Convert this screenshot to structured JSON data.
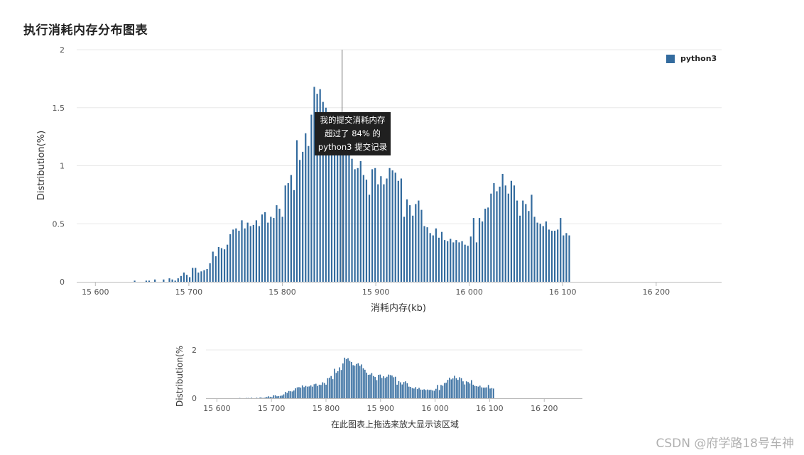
{
  "title": "执行消耗内存分布图表",
  "colors": {
    "bar": "#336b9e",
    "grid": "#e8e8e8",
    "axis": "#bbbbbb",
    "tick": "#555555",
    "tooltip_bg": "#202020",
    "watermark": "#b0b0b0"
  },
  "tooltip": {
    "lines": [
      "我的提交消耗内存",
      "超过了 84% 的",
      "python3 提交记录"
    ]
  },
  "legend": {
    "label": "python3"
  },
  "nav": {
    "hint": "在此图表上拖选来放大显示该区域"
  },
  "watermark": "CSDN @府学路18号车神",
  "chart_data": [
    {
      "type": "bar",
      "xlabel": "消耗内存(kb)",
      "ylabel": "Distribution(%)",
      "x_ticks": [
        15600,
        15700,
        15800,
        15900,
        16000,
        16100,
        16200
      ],
      "x_tick_labels": [
        "15 600",
        "15 700",
        "15 800",
        "15 900",
        "16 000",
        "16 100",
        "16 200"
      ],
      "y_ticks": [
        0,
        0.5,
        1,
        1.5,
        2
      ],
      "y_tick_labels": [
        "0",
        "0.5",
        "1",
        "1.5",
        "2"
      ],
      "xlim": [
        15580,
        16270
      ],
      "ylim": [
        0,
        2
      ],
      "highlight_x": 15864,
      "legend_position": "top-right",
      "grid": true,
      "x_start": 15642,
      "x_step": 3.1,
      "series": [
        {
          "name": "python3",
          "values": [
            0.01,
            0,
            0,
            0,
            0.01,
            0.01,
            0,
            0.02,
            0,
            0,
            0.02,
            0,
            0.03,
            0.02,
            0.01,
            0.03,
            0.05,
            0.08,
            0.06,
            0.04,
            0.12,
            0.12,
            0.08,
            0.09,
            0.1,
            0.11,
            0.16,
            0.26,
            0.22,
            0.3,
            0.29,
            0.28,
            0.32,
            0.41,
            0.45,
            0.46,
            0.44,
            0.53,
            0.46,
            0.51,
            0.48,
            0.49,
            0.53,
            0.48,
            0.58,
            0.6,
            0.51,
            0.56,
            0.55,
            0.66,
            0.63,
            0.56,
            0.83,
            0.85,
            0.92,
            0.79,
            1.22,
            1.05,
            1.12,
            1.28,
            1.17,
            1.44,
            1.68,
            1.62,
            1.66,
            1.55,
            1.5,
            1.37,
            1.35,
            1.42,
            1.45,
            1.34,
            1.4,
            1.24,
            1.18,
            1.06,
            0.97,
            0.98,
            1.04,
            0.92,
            0.88,
            0.75,
            0.97,
            0.98,
            0.84,
            0.91,
            0.84,
            0.89,
            0.98,
            0.96,
            0.94,
            0.87,
            0.89,
            0.56,
            0.71,
            0.66,
            0.57,
            0.67,
            0.7,
            0.62,
            0.48,
            0.47,
            0.42,
            0.4,
            0.46,
            0.38,
            0.43,
            0.36,
            0.35,
            0.37,
            0.34,
            0.36,
            0.34,
            0.35,
            0.32,
            0.31,
            0.39,
            0.55,
            0.34,
            0.55,
            0.52,
            0.63,
            0.64,
            0.76,
            0.85,
            0.78,
            0.82,
            0.93,
            0.83,
            0.76,
            0.87,
            0.83,
            0.7,
            0.57,
            0.7,
            0.67,
            0.61,
            0.75,
            0.56,
            0.51,
            0.5,
            0.48,
            0.52,
            0.45,
            0.44,
            0.44,
            0.45,
            0.55,
            0.4,
            0.42,
            0.4
          ]
        }
      ]
    },
    {
      "type": "bar",
      "xlabel": "在此图表上拖选来放大显示该区域",
      "ylabel": "Distribution(%",
      "x_ticks": [
        15600,
        15700,
        15800,
        15900,
        16000,
        16100,
        16200
      ],
      "x_tick_labels": [
        "15 600",
        "15 700",
        "15 800",
        "15 900",
        "16 000",
        "16 100",
        "16 200"
      ],
      "y_ticks": [
        0,
        2
      ],
      "y_tick_labels": [
        "0",
        "2"
      ],
      "xlim": [
        15580,
        16270
      ],
      "ylim": [
        0,
        2
      ],
      "grid": true
    }
  ]
}
